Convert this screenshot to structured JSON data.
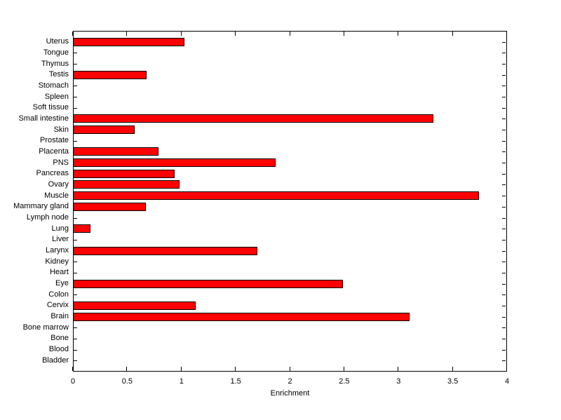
{
  "chart_data": {
    "type": "bar",
    "orientation": "horizontal",
    "title": "",
    "xlabel": "Enrichment",
    "ylabel": "",
    "xlim": [
      0,
      4
    ],
    "xticks": [
      0,
      0.5,
      1,
      1.5,
      2,
      2.5,
      3,
      3.5,
      4
    ],
    "xtick_labels": [
      "0",
      "0.5",
      "1",
      "1.5",
      "2",
      "2.5",
      "3",
      "3.5",
      "4"
    ],
    "grid": false,
    "legend": null,
    "bar_color": "#FF0000",
    "bar_edge_color": "#000000",
    "axis_color": "#000000",
    "background_color": "#FFFFFF",
    "categories_top_to_bottom": [
      "Uterus",
      "Tongue",
      "Thymus",
      "Testis",
      "Stomach",
      "Spleen",
      "Soft tissue",
      "Small intestine",
      "Skin",
      "Prostate",
      "Placenta",
      "PNS",
      "Pancreas",
      "Ovary",
      "Muscle",
      "Mammary gland",
      "Lymph node",
      "Lung",
      "Liver",
      "Larynx",
      "Kidney",
      "Heart",
      "Eye",
      "Colon",
      "Cervix",
      "Brain",
      "Bone marrow",
      "Bone",
      "Blood",
      "Bladder"
    ],
    "values_top_to_bottom": [
      1.03,
      0,
      0,
      0.68,
      0,
      0,
      0,
      3.32,
      0.57,
      0,
      0.79,
      1.87,
      0.94,
      0.98,
      3.74,
      0.67,
      0,
      0.16,
      0,
      1.7,
      0,
      0,
      2.49,
      0,
      1.13,
      3.1,
      0,
      0,
      0,
      0
    ]
  }
}
